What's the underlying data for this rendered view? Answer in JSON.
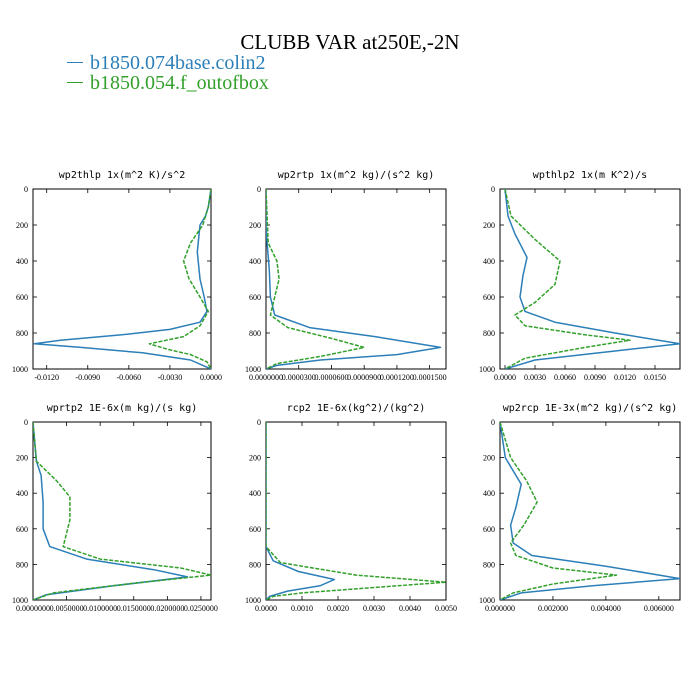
{
  "figure": {
    "title": "CLUBB VAR at250E,-2N",
    "legend": [
      {
        "label": "b1850.074base.colin2",
        "color": "#2c7fb8",
        "dash": "solid"
      },
      {
        "label": "b1850.054.f_outofbox",
        "color": "#33a02c",
        "dash": "dashed"
      }
    ]
  },
  "chart_data": [
    {
      "type": "line",
      "title": "wp2thlp  1x(m^2 K)/s^2",
      "xlim": [
        -0.013,
        0.0
      ],
      "ylim": [
        1000,
        0
      ],
      "xticks": [
        -0.012,
        -0.009,
        -0.006,
        -0.003,
        0.0
      ],
      "xticklabels": [
        "-0.0120",
        "-0.0090",
        "-0.0060",
        "-0.0030",
        "0.0000"
      ],
      "yticks": [
        0,
        200,
        400,
        600,
        800,
        1000
      ],
      "series": [
        {
          "name": "b1850.074base.colin2",
          "x": [
            0.0,
            -0.0002,
            -0.0004,
            -0.0008,
            -0.001,
            -0.0008,
            -0.0005,
            -0.0003,
            -0.0008,
            -0.003,
            -0.0065,
            -0.011,
            -0.0129,
            -0.0095,
            -0.005,
            -0.0015,
            0.0
          ],
          "y": [
            0,
            100,
            150,
            200,
            350,
            500,
            600,
            680,
            740,
            780,
            810,
            840,
            860,
            880,
            910,
            950,
            1000
          ]
        },
        {
          "name": "b1850.054.f_outofbox",
          "x": [
            0.0,
            -0.0002,
            -0.0006,
            -0.0015,
            -0.002,
            -0.0016,
            -0.0008,
            -0.0002,
            -0.0008,
            -0.002,
            -0.0045,
            -0.0032,
            -0.0015,
            -0.0003,
            0.0
          ],
          "y": [
            0,
            100,
            200,
            300,
            400,
            500,
            600,
            680,
            760,
            820,
            860,
            890,
            920,
            960,
            1000
          ]
        }
      ]
    },
    {
      "type": "line",
      "title": "wp2rtp  1x(m^2 kg)/(s^2 kg)",
      "xlim": [
        0.0,
        0.000165
      ],
      "ylim": [
        1000,
        0
      ],
      "xticks": [
        0.0,
        3e-05,
        6e-05,
        9e-05,
        0.00012,
        0.00015
      ],
      "xticklabels": [
        "0.0000000",
        "0.0000300",
        "0.0000600",
        "0.0000900",
        "0.0001200",
        "0.0001500"
      ],
      "yticks": [
        0,
        200,
        400,
        600,
        800,
        1000
      ],
      "series": [
        {
          "name": "b1850.074base.colin2",
          "x": [
            0.0,
            0.0,
            1e-06,
            3e-06,
            4e-06,
            8e-06,
            4e-05,
            0.0001,
            0.00016,
            0.00012,
            5e-05,
            1e-05,
            0.0
          ],
          "y": [
            0,
            200,
            300,
            450,
            600,
            700,
            770,
            820,
            880,
            920,
            950,
            980,
            1000
          ]
        },
        {
          "name": "b1850.054.f_outofbox",
          "x": [
            0.0,
            2e-06,
            1e-05,
            1.2e-05,
            8e-06,
            4e-06,
            2e-05,
            6e-05,
            9e-05,
            5e-05,
            1e-05,
            0.0
          ],
          "y": [
            0,
            300,
            400,
            500,
            600,
            700,
            770,
            830,
            880,
            930,
            970,
            1000
          ]
        }
      ]
    },
    {
      "type": "line",
      "title": "wpthlp2  1x(m K^2)/s",
      "xlim": [
        -0.0005,
        0.0175
      ],
      "ylim": [
        1000,
        0
      ],
      "xticks": [
        0.0,
        0.003,
        0.006,
        0.009,
        0.012,
        0.015
      ],
      "xticklabels": [
        "0.0000",
        "0.0030",
        "0.0060",
        "0.0090",
        "0.0120",
        "0.0150"
      ],
      "yticks": [
        0,
        200,
        400,
        600,
        800,
        1000
      ],
      "series": [
        {
          "name": "b1850.074base.colin2",
          "x": [
            0.0,
            0.0003,
            0.001,
            0.0022,
            0.0018,
            0.0015,
            0.002,
            0.005,
            0.011,
            0.0175,
            0.011,
            0.003,
            0.0
          ],
          "y": [
            0,
            150,
            250,
            380,
            480,
            600,
            680,
            740,
            800,
            860,
            900,
            950,
            1000
          ]
        },
        {
          "name": "b1850.054.f_outofbox",
          "x": [
            0.0,
            0.0006,
            0.003,
            0.0055,
            0.005,
            0.003,
            0.001,
            0.002,
            0.008,
            0.0125,
            0.008,
            0.002,
            0.0
          ],
          "y": [
            0,
            150,
            280,
            400,
            530,
            630,
            700,
            760,
            810,
            840,
            880,
            940,
            1000
          ]
        }
      ]
    },
    {
      "type": "line",
      "title": "wprtp2  1E-6x(m kg)/(s kg)",
      "xlim": [
        0.0,
        0.0265
      ],
      "ylim": [
        1000,
        0
      ],
      "xticks": [
        0.0,
        0.005,
        0.01,
        0.015,
        0.02,
        0.025
      ],
      "xticklabels": [
        "0.0000000",
        "0.0050000",
        "0.0100000",
        "0.0150000",
        "0.0200000",
        "0.0250000"
      ],
      "yticks": [
        0,
        200,
        400,
        600,
        800,
        1000
      ],
      "series": [
        {
          "name": "b1850.074base.colin2",
          "x": [
            0.0,
            0.0005,
            0.0012,
            0.0015,
            0.0015,
            0.0025,
            0.008,
            0.018,
            0.023,
            0.012,
            0.002,
            0.0
          ],
          "y": [
            0,
            220,
            300,
            450,
            600,
            700,
            770,
            830,
            870,
            920,
            970,
            1000
          ]
        },
        {
          "name": "b1850.054.f_outofbox",
          "x": [
            0.0,
            0.0005,
            0.0035,
            0.0055,
            0.0055,
            0.0045,
            0.01,
            0.022,
            0.0265,
            0.014,
            0.003,
            0.0
          ],
          "y": [
            0,
            220,
            330,
            420,
            550,
            700,
            770,
            820,
            860,
            910,
            960,
            1000
          ]
        }
      ]
    },
    {
      "type": "line",
      "title": "rcp2  1E-6x(kg^2)/(kg^2)",
      "xlim": [
        0.0,
        0.005
      ],
      "ylim": [
        1000,
        0
      ],
      "xticks": [
        0.0,
        0.001,
        0.002,
        0.003,
        0.004,
        0.005
      ],
      "xticklabels": [
        "0.0000",
        "0.0010",
        "0.0020",
        "0.0030",
        "0.0040",
        "0.0050"
      ],
      "yticks": [
        0,
        200,
        400,
        600,
        800,
        1000
      ],
      "series": [
        {
          "name": "b1850.074base.colin2",
          "x": [
            0.0,
            0.0,
            0.0002,
            0.0009,
            0.0019,
            0.0015,
            0.0006,
            0.0001,
            0.0
          ],
          "y": [
            0,
            700,
            780,
            840,
            885,
            920,
            950,
            980,
            1000
          ]
        },
        {
          "name": "b1850.054.f_outofbox",
          "x": [
            0.0,
            0.0,
            0.0004,
            0.0025,
            0.005,
            0.003,
            0.001,
            0.0002,
            0.0
          ],
          "y": [
            0,
            700,
            790,
            860,
            900,
            930,
            960,
            980,
            1000
          ]
        }
      ]
    },
    {
      "type": "line",
      "title": "wp2rcp  1E-3x(m^2 kg)/(s^2 kg)",
      "xlim": [
        0.0,
        0.0068
      ],
      "ylim": [
        1000,
        0
      ],
      "xticks": [
        0.0,
        0.002,
        0.004,
        0.006
      ],
      "xticklabels": [
        "0.000000",
        "0.002000",
        "0.004000",
        "0.006000"
      ],
      "yticks": [
        0,
        200,
        400,
        600,
        800,
        1000
      ],
      "series": [
        {
          "name": "b1850.074base.colin2",
          "x": [
            0.0,
            0.0002,
            0.0008,
            0.0006,
            0.0004,
            0.0005,
            0.0012,
            0.004,
            0.0068,
            0.0035,
            0.0008,
            0.0
          ],
          "y": [
            0,
            200,
            350,
            480,
            580,
            680,
            750,
            810,
            880,
            920,
            960,
            1000
          ]
        },
        {
          "name": "b1850.054.f_outofbox",
          "x": [
            0.0,
            0.0004,
            0.001,
            0.0014,
            0.0009,
            0.0004,
            0.0006,
            0.002,
            0.0044,
            0.002,
            0.0005,
            0.0
          ],
          "y": [
            0,
            200,
            330,
            450,
            580,
            680,
            750,
            820,
            860,
            910,
            960,
            1000
          ]
        }
      ]
    }
  ]
}
